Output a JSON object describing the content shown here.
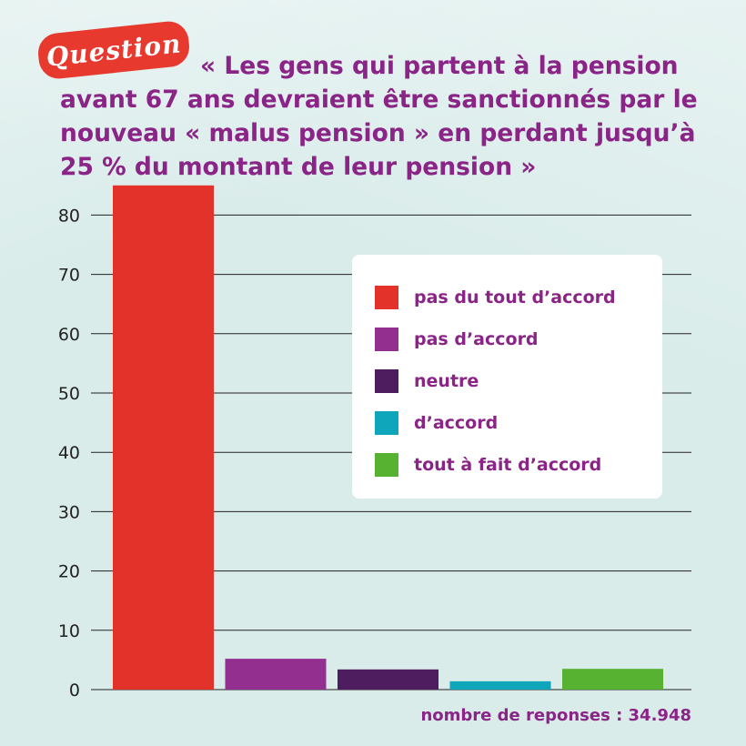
{
  "badge": {
    "label": "Question"
  },
  "question": "« Les gens qui partent à la pension avant 67 ans devraient être sanctionnés par le nouveau « malus pension » en perdant jusqu’à 25 % du montant de leur pension »",
  "footnote": "nombre de reponses : 34.948",
  "colors": {
    "background": "#d9ecea",
    "accent": "#8a2486",
    "badge": "#e8392f"
  },
  "chart_data": {
    "type": "bar",
    "categories": [
      "pas du tout d’accord",
      "pas d’accord",
      "neutre",
      "d’accord",
      "tout à fait d’accord"
    ],
    "values": [
      85,
      5.2,
      3.4,
      1.4,
      3.5
    ],
    "colors": [
      "#e33229",
      "#93308f",
      "#4d1d5f",
      "#0fa5ba",
      "#58b232"
    ],
    "ylim": [
      0,
      85
    ],
    "yticks": [
      0,
      10,
      20,
      30,
      40,
      50,
      60,
      70,
      80
    ],
    "grid": true,
    "legend_position": "top-right",
    "xlabel": "",
    "ylabel": ""
  }
}
